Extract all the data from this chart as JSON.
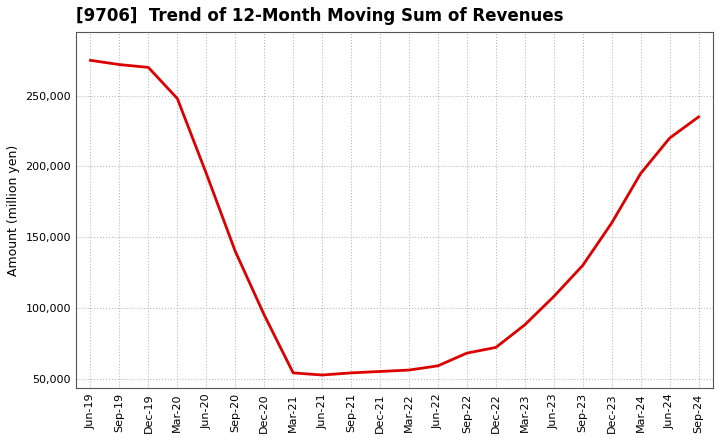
{
  "title": "[9706]  Trend of 12-Month Moving Sum of Revenues",
  "ylabel": "Amount (million yen)",
  "line_color": "#dd0000",
  "line_width": 2.0,
  "background_color": "#ffffff",
  "grid_color": "#bbbbbb",
  "ylim": [
    43000,
    295000
  ],
  "yticks": [
    50000,
    100000,
    150000,
    200000,
    250000
  ],
  "x_labels": [
    "Jun-19",
    "Sep-19",
    "Dec-19",
    "Mar-20",
    "Jun-20",
    "Sep-20",
    "Dec-20",
    "Mar-21",
    "Jun-21",
    "Sep-21",
    "Dec-21",
    "Mar-22",
    "Jun-22",
    "Sep-22",
    "Dec-22",
    "Mar-23",
    "Jun-23",
    "Sep-23",
    "Dec-23",
    "Mar-24",
    "Jun-24",
    "Sep-24"
  ],
  "values": [
    275000,
    272000,
    270000,
    248000,
    195000,
    140000,
    95000,
    54000,
    52500,
    54000,
    55000,
    56000,
    59000,
    68000,
    72000,
    88000,
    108000,
    130000,
    160000,
    195000,
    220000,
    235000
  ],
  "title_fontsize": 12,
  "ylabel_fontsize": 9,
  "tick_fontsize": 8
}
